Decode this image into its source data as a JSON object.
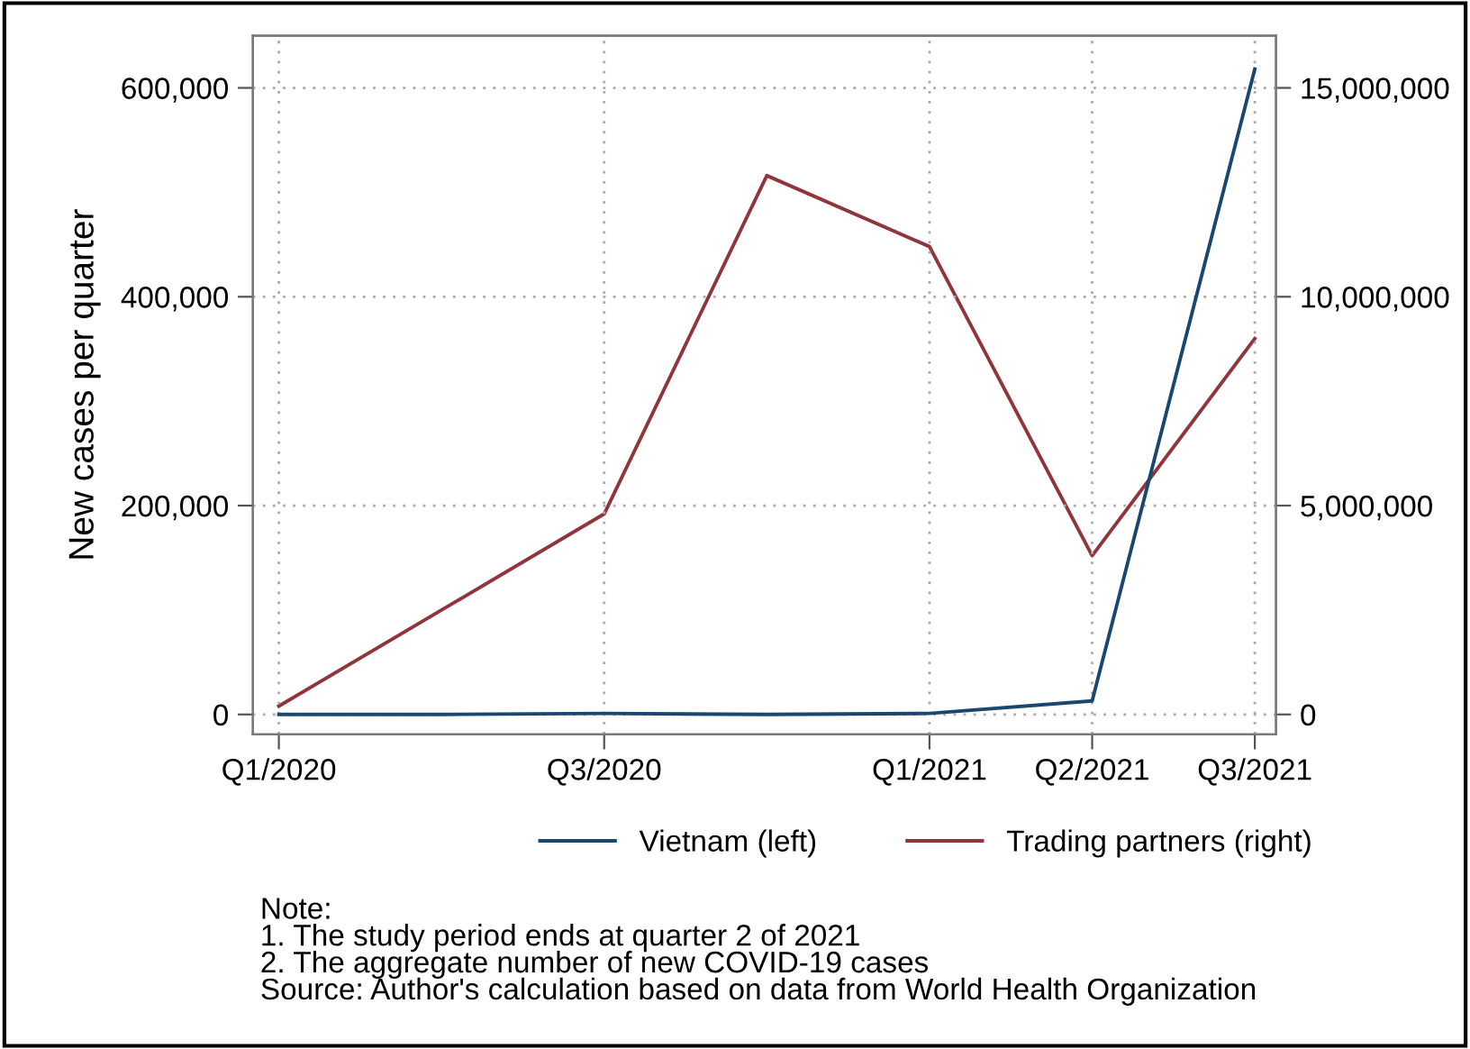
{
  "chart_data": {
    "type": "line",
    "ylabel": "New cases per quarter",
    "categories": [
      "Q1/2020",
      null,
      "Q3/2020",
      null,
      "Q1/2021",
      "Q2/2021",
      "Q3/2021"
    ],
    "ylim": [
      -19000,
      650000
    ],
    "yticks": [
      {
        "value": 0,
        "label": "0"
      },
      {
        "value": 200000,
        "label": "200,000"
      },
      {
        "value": 400000,
        "label": "400,000"
      },
      {
        "value": 600000,
        "label": "600,000"
      }
    ],
    "y2lim": [
      -475000,
      16250000
    ],
    "y2ticks": [
      {
        "value": 0,
        "label": "0"
      },
      {
        "value": 5000000,
        "label": "5,000,000"
      },
      {
        "value": 10000000,
        "label": "10,000,000"
      },
      {
        "value": 15000000,
        "label": "15,000,000"
      }
    ],
    "series": [
      {
        "name": "Vietnam (left)",
        "color": "#1a476f",
        "values": [
          0,
          0,
          1000,
          0,
          1000,
          13000,
          618000
        ]
      },
      {
        "name": "Trading partners (right)",
        "color": "#90353b",
        "axis": "y2",
        "values": [
          200000,
          2500000,
          4800000,
          12900000,
          11200000,
          3800000,
          9000000
        ]
      }
    ],
    "grid": true,
    "legend": "bottom",
    "line_style": "solid",
    "marker": "none",
    "annotations": [
      "Note:",
      "1. The study period ends at quarter 2 of 2021",
      "2. The aggregate number of new COVID-19 cases",
      "Source: Author's calculation based on data from World Health Organization"
    ]
  }
}
